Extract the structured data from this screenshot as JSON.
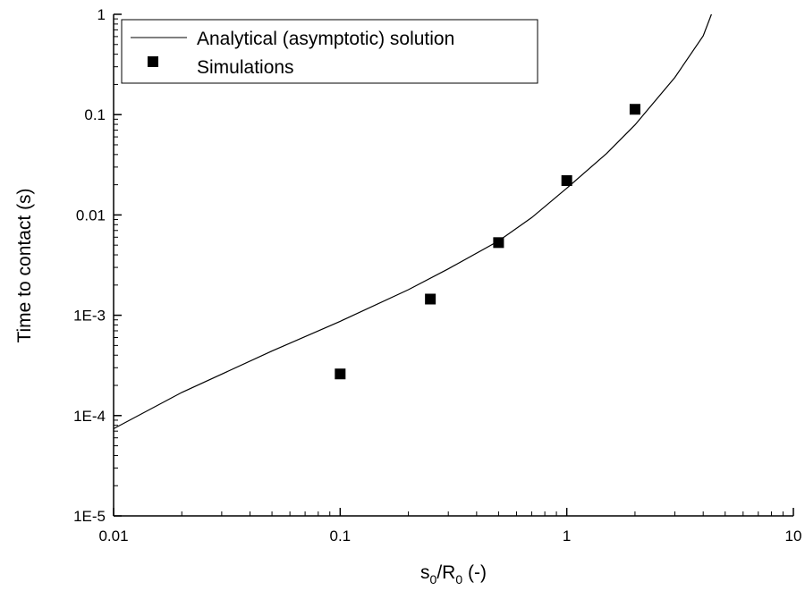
{
  "chart_data": {
    "type": "scatter",
    "title": "",
    "xlabel": {
      "parts": [
        "s",
        "0",
        "/R",
        "0",
        " (-)"
      ]
    },
    "ylabel": "Time to contact (s)",
    "x_scale": "log",
    "y_scale": "log",
    "xlim": [
      0.01,
      10
    ],
    "ylim": [
      1e-05,
      1
    ],
    "x_ticks": [
      {
        "value": 0.01,
        "label": "0.01"
      },
      {
        "value": 0.1,
        "label": "0.1"
      },
      {
        "value": 1,
        "label": "1"
      },
      {
        "value": 10,
        "label": "10"
      }
    ],
    "y_ticks": [
      {
        "value": 1e-05,
        "label": "1E-5"
      },
      {
        "value": 0.0001,
        "label": "1E-4"
      },
      {
        "value": 0.001,
        "label": "1E-3"
      },
      {
        "value": 0.01,
        "label": "0.01"
      },
      {
        "value": 0.1,
        "label": "0.1"
      },
      {
        "value": 1,
        "label": "1"
      }
    ],
    "grid": false,
    "legend_position": "top-left",
    "series": [
      {
        "name": "Analytical (asymptotic) solution",
        "type": "line",
        "color": "#000000",
        "x": [
          0.01,
          0.02,
          0.05,
          0.1,
          0.2,
          0.3,
          0.5,
          0.7,
          1,
          1.5,
          2,
          3,
          4,
          4.35
        ],
        "y": [
          7.4e-05,
          0.00017,
          0.00044,
          0.00087,
          0.0018,
          0.0029,
          0.0055,
          0.0094,
          0.0185,
          0.041,
          0.079,
          0.235,
          0.61,
          1.0
        ]
      },
      {
        "name": "Simulations",
        "type": "scatter",
        "marker": "square",
        "color": "#000000",
        "x": [
          0.1,
          0.25,
          0.5,
          1,
          2
        ],
        "y": [
          0.00026,
          0.00145,
          0.0053,
          0.022,
          0.113
        ]
      }
    ]
  }
}
